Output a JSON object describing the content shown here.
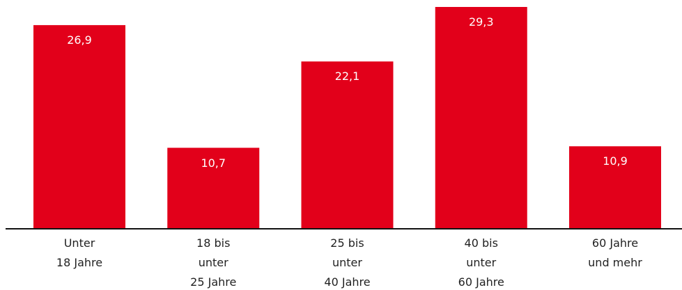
{
  "chart_data": {
    "type": "bar",
    "categories": [
      "Unter\n18 Jahre",
      "18 bis\nunter\n25 Jahre",
      "25 bis\nunter\n40 Jahre",
      "40 bis\nunter\n60 Jahre",
      "60 Jahre\nund mehr"
    ],
    "values": [
      26.9,
      10.7,
      22.1,
      29.3,
      10.9
    ],
    "value_labels": [
      "26,9",
      "10,7",
      "22,1",
      "29,3",
      "10,9"
    ],
    "color": "#e2001a"
  }
}
